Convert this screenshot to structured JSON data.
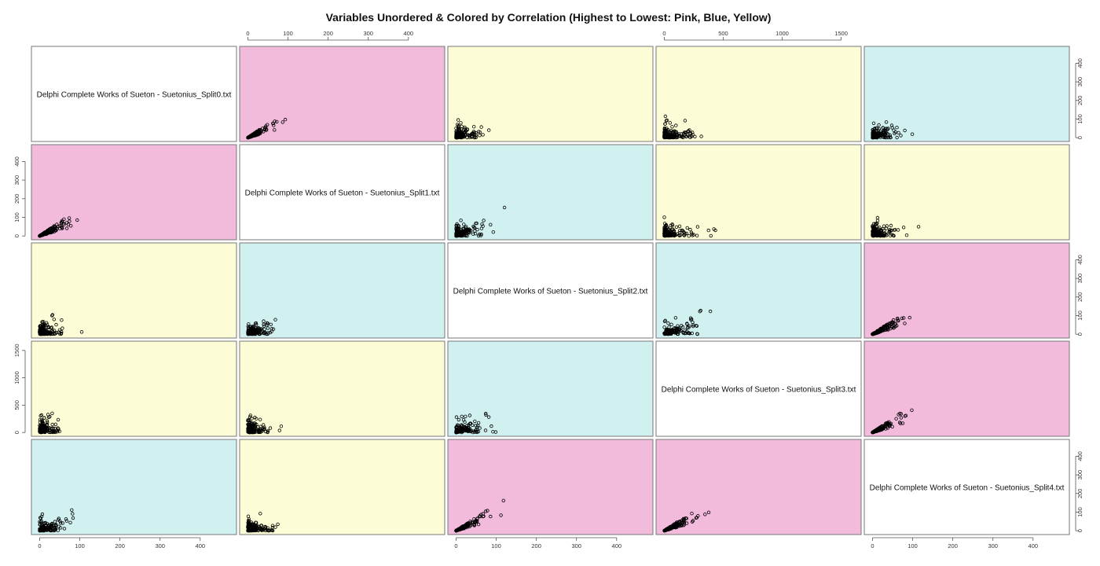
{
  "chart_data": {
    "type": "scatter",
    "title": "Variables Unordered & Colored by Correlation (Highest to Lowest: Pink, Blue, Yellow)",
    "variables": [
      "Delphi Complete Works of Sueton - Suetonius_Split0.txt",
      "Delphi Complete Works of Sueton - Suetonius_Split1.txt",
      "Delphi Complete Works of Sueton - Suetonius_Split2.txt",
      "Delphi Complete Works of Sueton - Suetonius_Split3.txt",
      "Delphi Complete Works of Sueton - Suetonius_Split4.txt"
    ],
    "ranges": [
      [
        0,
        470
      ],
      [
        0,
        470
      ],
      [
        0,
        470
      ],
      [
        0,
        1600
      ],
      [
        0,
        470
      ]
    ],
    "ticks": [
      [
        0,
        100,
        200,
        300,
        400
      ],
      [
        0,
        100,
        200,
        300,
        400
      ],
      [
        0,
        100,
        200,
        300,
        400
      ],
      [
        0,
        500,
        1000,
        1500
      ],
      [
        0,
        100,
        200,
        300,
        400
      ]
    ],
    "panel_colors": {
      "pink": "#f2bbdc",
      "blue": "#d1f0f0",
      "yellow": "#fcfcd6",
      "diagonal": "#ffffff"
    },
    "correlation_class": [
      [
        "diag",
        "pink",
        "yellow",
        "yellow",
        "blue"
      ],
      [
        "pink",
        "diag",
        "blue",
        "yellow",
        "yellow"
      ],
      [
        "yellow",
        "blue",
        "diag",
        "blue",
        "pink"
      ],
      [
        "yellow",
        "yellow",
        "blue",
        "diag",
        "pink"
      ],
      [
        "blue",
        "yellow",
        "pink",
        "pink",
        "diag"
      ]
    ],
    "top_axis_columns": [
      1,
      3
    ],
    "bottom_axis_columns": [
      0,
      2,
      4
    ],
    "left_axis_rows": [
      1,
      3
    ],
    "right_axis_rows": [
      0,
      2,
      4
    ]
  }
}
